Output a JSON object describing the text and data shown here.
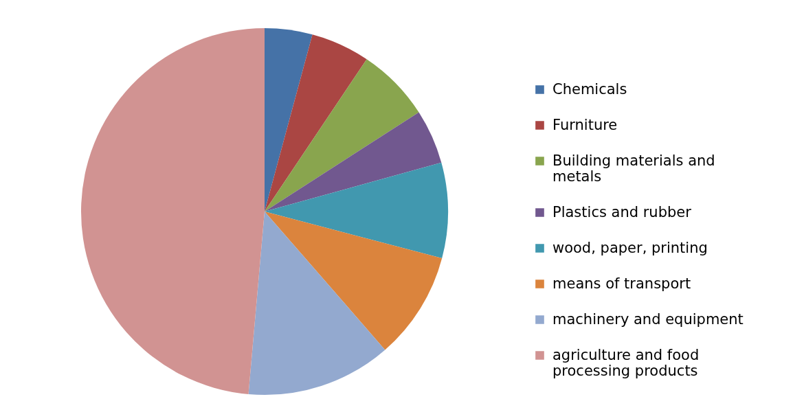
{
  "chart_data": {
    "type": "pie",
    "categories": [
      "Chemicals",
      "Furniture",
      "Building materials and metals",
      "Plastics and rubber",
      "wood, paper, printing",
      "means of transport",
      "machinery and equipment",
      "agriculture and food processing products"
    ],
    "values": [
      4.2,
      5.2,
      6.5,
      4.8,
      8.4,
      9.5,
      12.8,
      48.6
    ],
    "colors": [
      "#4572a7",
      "#aa4643",
      "#89a54e",
      "#71588f",
      "#4198af",
      "#db843d",
      "#93a9cf",
      "#d19392"
    ],
    "legend": "right"
  }
}
